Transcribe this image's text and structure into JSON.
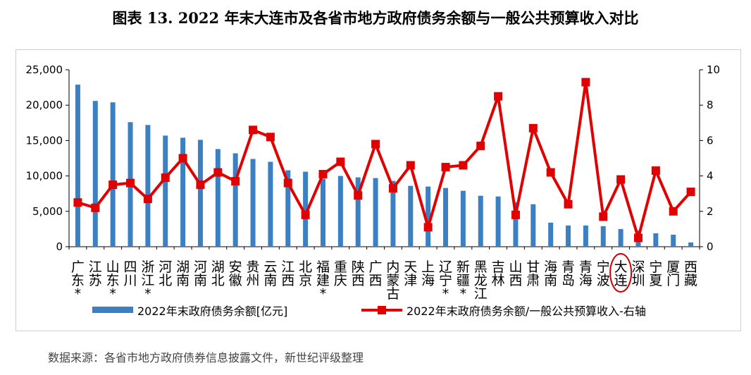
{
  "page": {
    "title": "图表 13. 2022 年末大连市及各省市地方政府债务余额与一般公共预算收入对比",
    "source": "数据来源：各省市地方政府债券信息披露文件，新世纪评级整理",
    "colors": {
      "bar": "#3a80c3",
      "line": "#e00000",
      "highlight": "#cc0000",
      "axis": "#000000"
    }
  },
  "chart_data": {
    "type": "bar",
    "categories": [
      "广东*",
      "江苏",
      "山东*",
      "四川",
      "浙江*",
      "河北",
      "湖南",
      "河南",
      "湖北",
      "安徽",
      "贵州",
      "云南",
      "江西",
      "北京",
      "福建*",
      "重庆",
      "陕西",
      "广西",
      "内蒙古",
      "天津",
      "上海",
      "辽宁*",
      "新疆*",
      "黑龙江",
      "吉林",
      "山西",
      "甘肃",
      "海南",
      "青岛",
      "青海",
      "宁波",
      "大连",
      "深圳",
      "宁夏",
      "厦门",
      "西藏"
    ],
    "y_left": {
      "ticks": [
        "0",
        "5,000",
        "10,000",
        "15,000",
        "20,000",
        "25,000"
      ],
      "ylim": [
        0,
        25000
      ]
    },
    "y_right": {
      "ticks": [
        "0",
        "2",
        "4",
        "6",
        "8",
        "10"
      ],
      "ylim": [
        0,
        10
      ]
    },
    "series": [
      {
        "name": "2022年末政府债务余额[亿元]",
        "kind": "bar",
        "axis": "left",
        "values": [
          22900,
          20600,
          20400,
          17600,
          17200,
          15700,
          15400,
          15100,
          13800,
          13200,
          12400,
          12000,
          10800,
          10600,
          9600,
          10000,
          9800,
          9700,
          9300,
          8600,
          8500,
          8300,
          7900,
          7200,
          7100,
          6300,
          6000,
          3400,
          3000,
          3000,
          2900,
          2500,
          2300,
          1900,
          1700,
          600
        ]
      },
      {
        "name": "2022年末政府债务余额/一般公共预算收入-右轴",
        "kind": "line",
        "axis": "right",
        "values": [
          2.5,
          2.2,
          3.5,
          3.6,
          2.7,
          3.9,
          5.0,
          3.5,
          4.2,
          3.7,
          6.6,
          6.2,
          3.6,
          1.8,
          4.1,
          4.8,
          2.9,
          5.8,
          3.3,
          4.6,
          1.1,
          4.5,
          4.6,
          5.7,
          8.5,
          1.8,
          6.7,
          4.2,
          2.4,
          9.3,
          1.7,
          3.8,
          0.5,
          4.3,
          2.0,
          3.1
        ]
      }
    ],
    "highlight_category": "大连",
    "legend_position": "bottom",
    "grid": false
  }
}
